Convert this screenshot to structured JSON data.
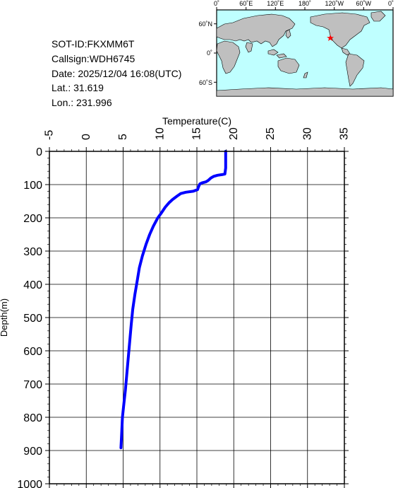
{
  "info": {
    "sot_id": "SOT-ID:FKXMM6T",
    "callsign": "Callsign:WDH6745",
    "date": "Date:  2025/12/04 16:08(UTC)",
    "lat": "Lat.:  31.619",
    "lon": "Lon.:  231.996"
  },
  "map": {
    "lon_ticks": [
      "0˚",
      "60˚E",
      "120˚E",
      "180˚",
      "120˚W",
      "60˚W",
      "0˚"
    ],
    "lat_ticks": [
      "60˚N",
      "0˚",
      "60˚S"
    ],
    "marker_lat": 31.619,
    "marker_lon": 231.996,
    "ocean_color": "#bfffff",
    "land_color": "#bfbfbf",
    "marker_color": "#ff0000"
  },
  "chart_data": {
    "type": "line",
    "xlabel": "Temperature(C)",
    "ylabel": "Depth(m)",
    "xlim": [
      -5,
      35
    ],
    "ylim": [
      1000,
      0
    ],
    "x_ticks": [
      "-5",
      "0",
      "5",
      "10",
      "15",
      "20",
      "25",
      "30",
      "35"
    ],
    "y_ticks": [
      "0",
      "100",
      "200",
      "300",
      "400",
      "500",
      "600",
      "700",
      "800",
      "900",
      "1000"
    ],
    "x_tick_values": [
      -5,
      0,
      5,
      10,
      15,
      20,
      25,
      30,
      35
    ],
    "y_tick_values": [
      0,
      100,
      200,
      300,
      400,
      500,
      600,
      700,
      800,
      900,
      1000
    ],
    "grid": true,
    "line_color": "#0000ff",
    "points": [
      [
        18.9,
        0
      ],
      [
        18.9,
        10
      ],
      [
        18.9,
        30
      ],
      [
        18.9,
        50
      ],
      [
        18.8,
        68
      ],
      [
        18.4,
        70
      ],
      [
        17.8,
        72
      ],
      [
        17.3,
        75
      ],
      [
        16.9,
        80
      ],
      [
        16.5,
        88
      ],
      [
        16.2,
        92
      ],
      [
        15.7,
        95
      ],
      [
        15.4,
        98
      ],
      [
        15.3,
        103
      ],
      [
        15.2,
        108
      ],
      [
        15.1,
        115
      ],
      [
        14.5,
        120
      ],
      [
        13.5,
        123
      ],
      [
        12.8,
        127
      ],
      [
        12.3,
        135
      ],
      [
        11.7,
        145
      ],
      [
        11.2,
        155
      ],
      [
        10.7,
        168
      ],
      [
        10.2,
        185
      ],
      [
        9.7,
        200
      ],
      [
        9.1,
        225
      ],
      [
        8.6,
        250
      ],
      [
        8.1,
        280
      ],
      [
        7.6,
        315
      ],
      [
        7.2,
        350
      ],
      [
        6.9,
        390
      ],
      [
        6.6,
        430
      ],
      [
        6.3,
        475
      ],
      [
        6.1,
        520
      ],
      [
        5.9,
        570
      ],
      [
        5.7,
        620
      ],
      [
        5.5,
        670
      ],
      [
        5.3,
        720
      ],
      [
        5.1,
        760
      ],
      [
        4.9,
        800
      ],
      [
        4.8,
        850
      ],
      [
        4.7,
        892
      ]
    ]
  }
}
